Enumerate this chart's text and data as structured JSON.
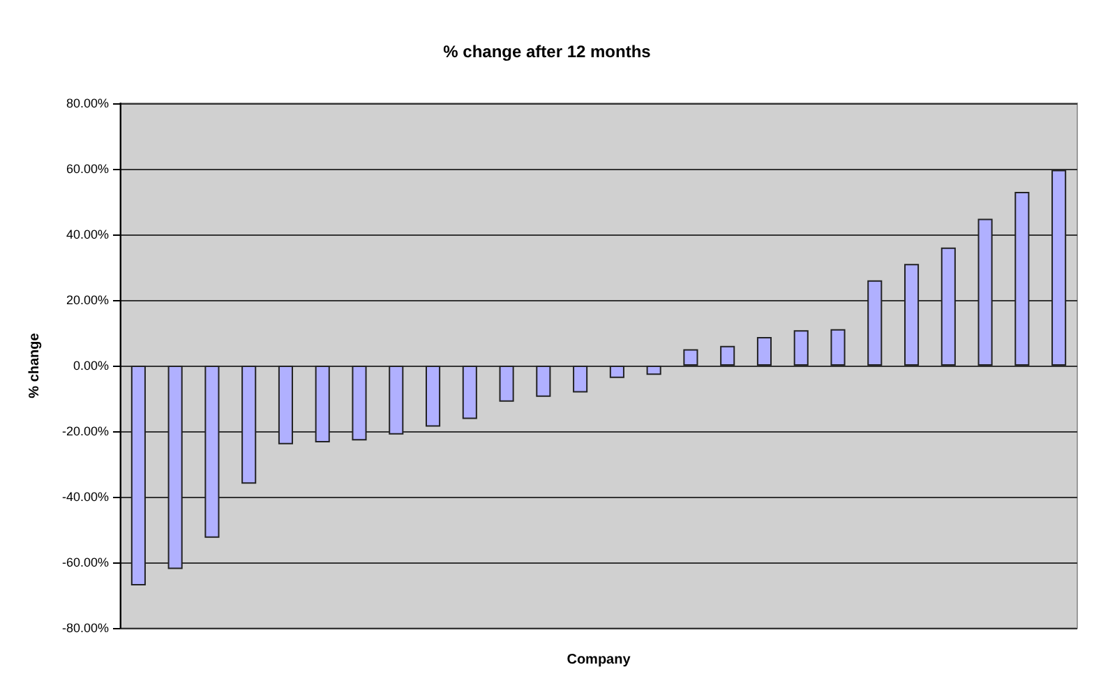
{
  "chart_data": {
    "type": "bar",
    "title": "% change after 12 months",
    "xlabel": "Company",
    "ylabel": "% change",
    "categories": [
      null,
      null,
      null,
      null,
      null,
      null,
      null,
      null,
      null,
      null,
      null,
      null,
      null,
      null,
      null,
      null,
      null,
      null,
      null,
      null,
      null,
      null,
      null,
      null,
      null,
      null
    ],
    "values": [
      -67,
      -62,
      -52.5,
      -36,
      -24,
      -23.4,
      -22.8,
      -21,
      -18.6,
      -16.3,
      -11,
      -9.5,
      -8.2,
      -3.8,
      -2.8,
      5,
      6,
      8.7,
      10.8,
      11.1,
      26,
      31,
      36,
      44.8,
      53,
      59.7
    ],
    "color": "#b0b0ff",
    "ylim": [
      -80,
      80
    ],
    "yticks": [
      {
        "value": -80,
        "label": "-80.00%"
      },
      {
        "value": -60,
        "label": "-60.00%"
      },
      {
        "value": -40,
        "label": "-40.00%"
      },
      {
        "value": -20,
        "label": "-20.00%"
      },
      {
        "value": 0,
        "label": "0.00%"
      },
      {
        "value": 20,
        "label": "20.00%"
      },
      {
        "value": 40,
        "label": "40.00%"
      },
      {
        "value": 60,
        "label": "60.00%"
      },
      {
        "value": 80,
        "label": "80.00%"
      }
    ],
    "grid": "y"
  }
}
